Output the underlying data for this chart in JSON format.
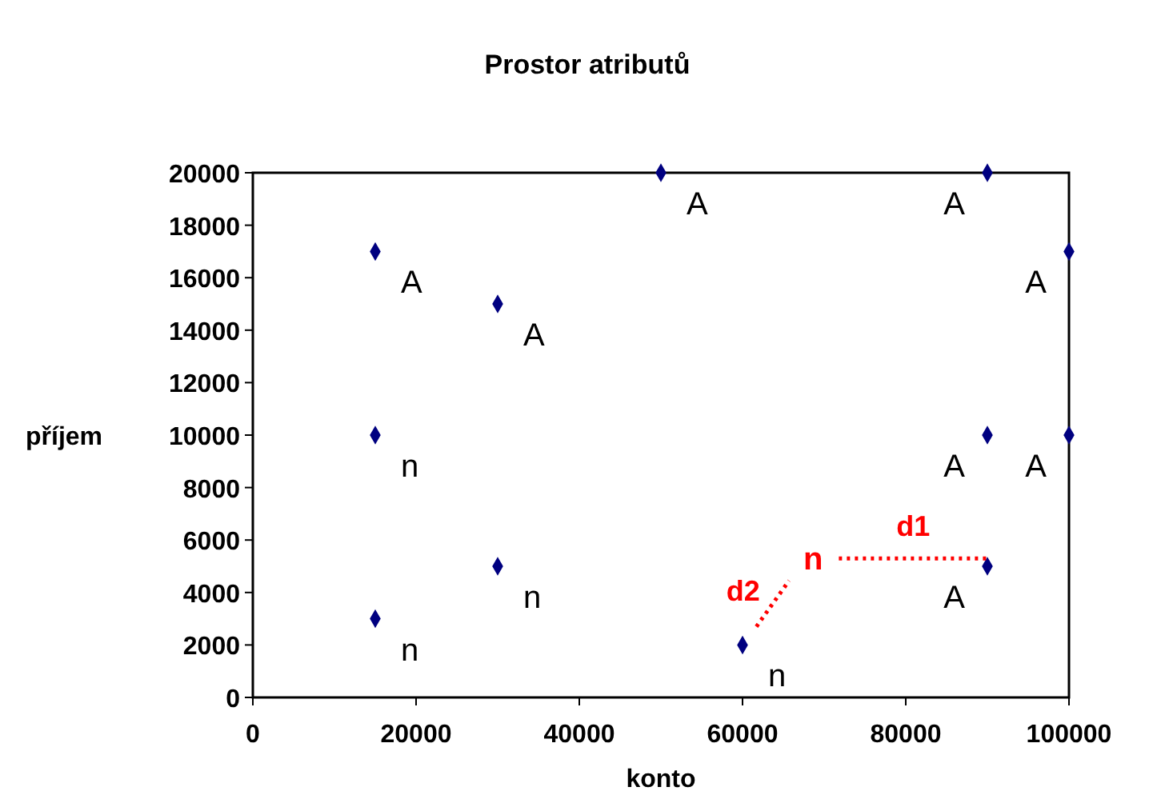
{
  "chart_data": {
    "type": "scatter",
    "title": "Prostor atributů",
    "xlabel": "konto",
    "ylabel": "příjem",
    "xlim": [
      0,
      100000
    ],
    "xticks": [
      0,
      20000,
      40000,
      60000,
      80000,
      100000
    ],
    "ylim": [
      0,
      20000
    ],
    "yticks": [
      0,
      2000,
      4000,
      6000,
      8000,
      10000,
      12000,
      14000,
      16000,
      18000,
      20000
    ],
    "grid": false,
    "series": [
      {
        "marker": "diamond",
        "color": "#000080",
        "x": [
          15000,
          30000,
          50000,
          90000,
          100000,
          15000,
          90000,
          100000,
          30000,
          15000,
          60000,
          90000
        ],
        "values": [
          17000,
          15000,
          20000,
          20000,
          17000,
          10000,
          10000,
          10000,
          5000,
          3000,
          2000,
          5000
        ],
        "value_labels": [
          "A",
          "A",
          "A",
          "A",
          "A",
          "n",
          "A",
          "A",
          "n",
          "n",
          "n",
          "A"
        ]
      },
      {
        "type": "line",
        "name": "d1",
        "marker": "none",
        "color": "#ff0000",
        "line_style": "dotted",
        "x": [
          71800,
          90000
        ],
        "values": [
          5300,
          5300
        ],
        "value_labels": [
          "n",
          null
        ]
      },
      {
        "type": "line",
        "name": "d2",
        "marker": "none",
        "color": "#ff0000",
        "line_style": "dotted",
        "x": [
          61700,
          65700
        ],
        "values": [
          2700,
          4450
        ]
      }
    ]
  }
}
